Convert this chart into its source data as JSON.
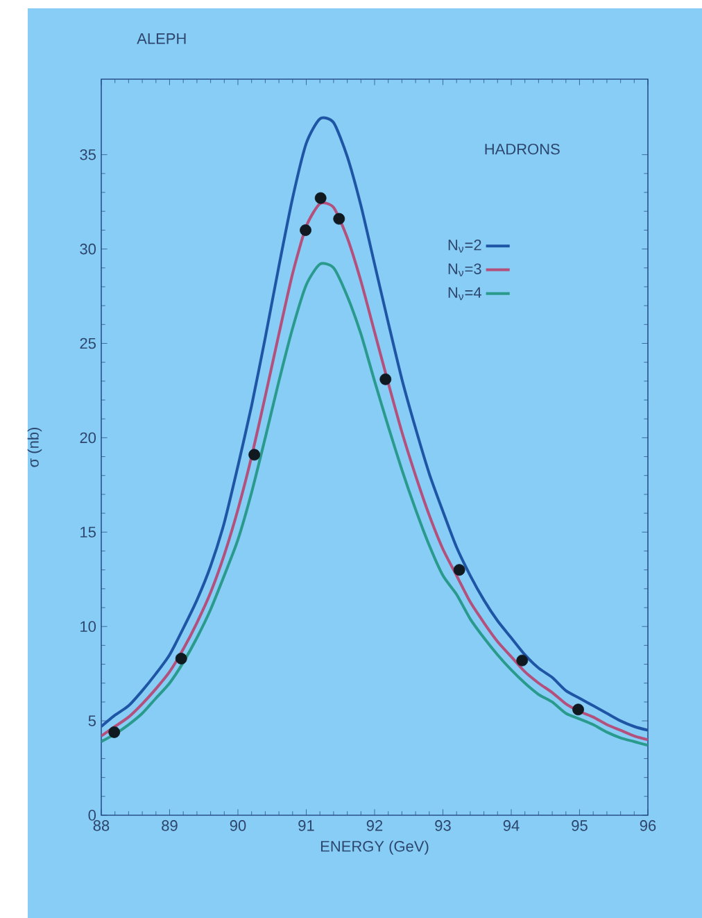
{
  "chart_data": {
    "type": "line",
    "title": "ALEPH",
    "xlabel": "ENERGY (GeV)",
    "ylabel": "σ (nb)",
    "annotations": [
      "HADRONS"
    ],
    "xlim": [
      88,
      96
    ],
    "xticks": [
      88,
      89,
      90,
      91,
      92,
      93,
      94,
      95,
      96
    ],
    "ylim": [
      0,
      39
    ],
    "yticks": [
      0,
      5,
      10,
      15,
      20,
      25,
      30,
      35
    ],
    "grid": false,
    "legend": "top right",
    "series": [
      {
        "name": "N$_{ν}$=2",
        "color": "#1f55a5",
        "marker": "none",
        "x": [
          88,
          88.2,
          88.4,
          88.6,
          88.8,
          89,
          89.2,
          89.4,
          89.6,
          89.8,
          90,
          90.2,
          90.4,
          90.6,
          90.8,
          91,
          91.2,
          91.4,
          91.6,
          91.8,
          92,
          92.2,
          92.4,
          92.6,
          92.8,
          93,
          93.2,
          93.4,
          93.6,
          93.8,
          94,
          94.2,
          94.4,
          94.6,
          94.8,
          95,
          95.2,
          95.4,
          95.6,
          95.8,
          96
        ],
        "values": [
          4.7,
          5.3,
          5.8,
          6.6,
          7.5,
          8.5,
          9.9,
          11.4,
          13.2,
          15.5,
          18.5,
          21.7,
          25.3,
          29.1,
          32.7,
          35.6,
          36.9,
          36.7,
          34.9,
          32.3,
          29.2,
          26.1,
          23.1,
          20.5,
          18.1,
          16.1,
          14.2,
          12.7,
          11.4,
          10.3,
          9.4,
          8.5,
          7.8,
          7.3,
          6.6,
          6.2,
          5.8,
          5.4,
          5.0,
          4.7,
          4.5
        ]
      },
      {
        "name": "N$_{ν}$=3",
        "color": "#b4507c",
        "marker": "none",
        "x": [
          88,
          88.2,
          88.4,
          88.6,
          88.8,
          89,
          89.2,
          89.4,
          89.6,
          89.8,
          90,
          90.2,
          90.4,
          90.6,
          90.8,
          91,
          91.2,
          91.4,
          91.6,
          91.8,
          92,
          92.2,
          92.4,
          92.6,
          92.8,
          93,
          93.2,
          93.4,
          93.6,
          93.8,
          94,
          94.2,
          94.4,
          94.6,
          94.8,
          95,
          95.2,
          95.4,
          95.6,
          95.8,
          96
        ],
        "values": [
          4.2,
          4.7,
          5.2,
          5.9,
          6.7,
          7.6,
          8.8,
          10.2,
          11.8,
          13.8,
          16.2,
          19.0,
          22.2,
          25.5,
          28.7,
          31.2,
          32.4,
          32.2,
          30.6,
          28.3,
          25.6,
          22.9,
          20.3,
          18.0,
          15.9,
          14.1,
          12.7,
          11.3,
          10.2,
          9.2,
          8.4,
          7.6,
          7.0,
          6.5,
          5.9,
          5.5,
          5.2,
          4.8,
          4.5,
          4.2,
          4.0
        ]
      },
      {
        "name": "N$_{ν}$=4",
        "color": "#2a9a8c",
        "marker": "none",
        "x": [
          88,
          88.2,
          88.4,
          88.6,
          88.8,
          89,
          89.2,
          89.4,
          89.6,
          89.8,
          90,
          90.2,
          90.4,
          90.6,
          90.8,
          91,
          91.2,
          91.4,
          91.6,
          91.8,
          92,
          92.2,
          92.4,
          92.6,
          92.8,
          93,
          93.2,
          93.4,
          93.6,
          93.8,
          94,
          94.2,
          94.4,
          94.6,
          94.8,
          95,
          95.2,
          95.4,
          95.6,
          95.8,
          96
        ],
        "values": [
          3.9,
          4.3,
          4.8,
          5.4,
          6.2,
          7.0,
          8.1,
          9.4,
          10.9,
          12.7,
          14.6,
          17.1,
          20.0,
          23.0,
          25.8,
          28.1,
          29.2,
          29.0,
          27.5,
          25.5,
          23.0,
          20.6,
          18.3,
          16.2,
          14.3,
          12.7,
          11.7,
          10.4,
          9.4,
          8.5,
          7.7,
          7.0,
          6.4,
          6.0,
          5.4,
          5.1,
          4.8,
          4.4,
          4.1,
          3.9,
          3.7
        ]
      },
      {
        "color": "#101820",
        "type": "scatter",
        "marker": "circle",
        "x": [
          88.19,
          89.17,
          90.24,
          90.99,
          91.21,
          91.48,
          92.16,
          93.24,
          94.16,
          94.98
        ],
        "values": [
          4.4,
          8.3,
          19.1,
          31.0,
          32.7,
          31.6,
          23.1,
          13.0,
          8.2,
          5.6
        ]
      }
    ]
  }
}
